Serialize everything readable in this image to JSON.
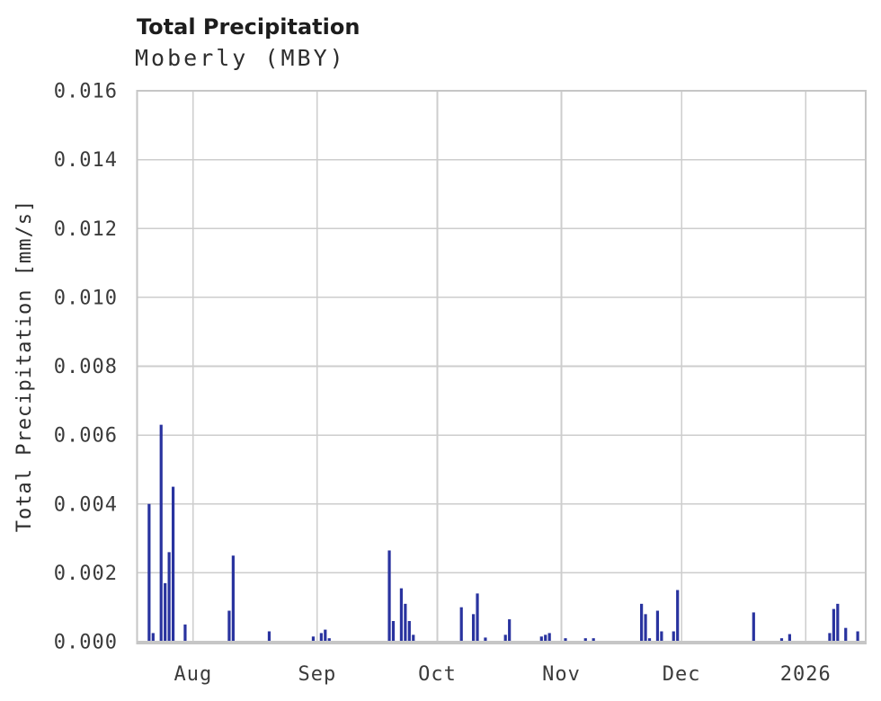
{
  "chart_data": {
    "type": "bar",
    "title": "Total Precipitation",
    "subtitle": "Moberly (MBY)",
    "station": "Moberly",
    "station_code": "MBY",
    "ylabel": "Total Precipitation [mm/s]",
    "ylim": [
      0,
      0.016
    ],
    "ytick_step": 0.002,
    "ytick_decimals": 3,
    "grid": true,
    "legend": "none",
    "x_start": "2025-07-18",
    "x_end": "2026-01-16",
    "x_ticks": [
      {
        "date": "2025-08-01",
        "label": "Aug"
      },
      {
        "date": "2025-09-01",
        "label": "Sep"
      },
      {
        "date": "2025-10-01",
        "label": "Oct"
      },
      {
        "date": "2025-11-01",
        "label": "Nov"
      },
      {
        "date": "2025-12-01",
        "label": "Dec"
      },
      {
        "date": "2026-01-01",
        "label": "2026"
      }
    ],
    "series": [
      {
        "name": "Total Precipitation",
        "unit": "mm/s",
        "points": [
          {
            "date": "2025-07-21",
            "value": 0.004
          },
          {
            "date": "2025-07-22",
            "value": 0.00025
          },
          {
            "date": "2025-07-24",
            "value": 0.0063
          },
          {
            "date": "2025-07-25",
            "value": 0.0017
          },
          {
            "date": "2025-07-26",
            "value": 0.0026
          },
          {
            "date": "2025-07-27",
            "value": 0.0045
          },
          {
            "date": "2025-07-30",
            "value": 0.0005
          },
          {
            "date": "2025-08-10",
            "value": 0.0009
          },
          {
            "date": "2025-08-11",
            "value": 0.0025
          },
          {
            "date": "2025-08-20",
            "value": 0.0003
          },
          {
            "date": "2025-08-31",
            "value": 0.00015
          },
          {
            "date": "2025-09-02",
            "value": 0.00025
          },
          {
            "date": "2025-09-03",
            "value": 0.00035
          },
          {
            "date": "2025-09-04",
            "value": 0.0001
          },
          {
            "date": "2025-09-19",
            "value": 0.00265
          },
          {
            "date": "2025-09-20",
            "value": 0.0006
          },
          {
            "date": "2025-09-22",
            "value": 0.00155
          },
          {
            "date": "2025-09-23",
            "value": 0.0011
          },
          {
            "date": "2025-09-24",
            "value": 0.0006
          },
          {
            "date": "2025-09-25",
            "value": 0.0002
          },
          {
            "date": "2025-10-07",
            "value": 0.001
          },
          {
            "date": "2025-10-10",
            "value": 0.0008
          },
          {
            "date": "2025-10-11",
            "value": 0.0014
          },
          {
            "date": "2025-10-13",
            "value": 0.00012
          },
          {
            "date": "2025-10-18",
            "value": 0.0002
          },
          {
            "date": "2025-10-19",
            "value": 0.00065
          },
          {
            "date": "2025-10-27",
            "value": 0.00015
          },
          {
            "date": "2025-10-28",
            "value": 0.0002
          },
          {
            "date": "2025-10-29",
            "value": 0.00025
          },
          {
            "date": "2025-11-02",
            "value": 0.0001
          },
          {
            "date": "2025-11-07",
            "value": 0.0001
          },
          {
            "date": "2025-11-09",
            "value": 0.0001
          },
          {
            "date": "2025-11-21",
            "value": 0.0011
          },
          {
            "date": "2025-11-22",
            "value": 0.0008
          },
          {
            "date": "2025-11-23",
            "value": 0.0001
          },
          {
            "date": "2025-11-25",
            "value": 0.0009
          },
          {
            "date": "2025-11-26",
            "value": 0.0003
          },
          {
            "date": "2025-11-29",
            "value": 0.0003
          },
          {
            "date": "2025-11-30",
            "value": 0.0015
          },
          {
            "date": "2025-12-19",
            "value": 0.00085
          },
          {
            "date": "2025-12-26",
            "value": 0.0001
          },
          {
            "date": "2025-12-28",
            "value": 0.00022
          },
          {
            "date": "2026-01-07",
            "value": 0.00025
          },
          {
            "date": "2026-01-08",
            "value": 0.00095
          },
          {
            "date": "2026-01-09",
            "value": 0.0011
          },
          {
            "date": "2026-01-11",
            "value": 0.0004
          },
          {
            "date": "2026-01-14",
            "value": 0.0003
          }
        ]
      }
    ],
    "colors": {
      "bar": "#29339f",
      "grid": "#cdcdcd",
      "border": "#c6c6c6",
      "tick_text": "#3b3b3b",
      "title_text": "#1d1d1d",
      "background": "#ffffff"
    }
  }
}
